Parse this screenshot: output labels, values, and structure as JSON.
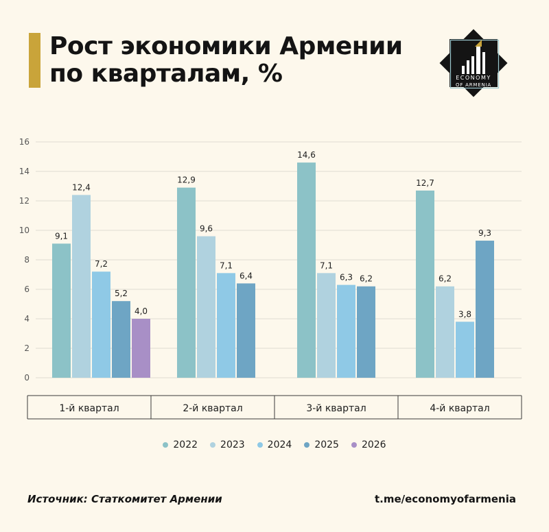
{
  "header": {
    "title_line1": "Рост экономики Армении",
    "title_line2": "по кварталам, %"
  },
  "logo": {
    "line1": "ECONOMY",
    "line2": "OF ARMENIA",
    "icon": "economy-of-armenia-logo"
  },
  "colors": {
    "accent": "#c9a43a",
    "logo_bg": "#141414",
    "series": [
      "#8cc2c7",
      "#b0d2df",
      "#8fc9e6",
      "#6ea5c4",
      "#a88fc6"
    ]
  },
  "chart_data": {
    "type": "bar",
    "categories": [
      "1-й квартал",
      "2-й квартал",
      "3-й квартал",
      "4-й квартал"
    ],
    "series": [
      {
        "name": "2022",
        "values": [
          9.1,
          12.9,
          14.6,
          12.7
        ],
        "labels": [
          "9,1",
          "12,9",
          "14,6",
          "12,7"
        ]
      },
      {
        "name": "2023",
        "values": [
          12.4,
          9.6,
          7.1,
          6.2
        ],
        "labels": [
          "12,4",
          "9,6",
          "7,1",
          "6,2"
        ]
      },
      {
        "name": "2024",
        "values": [
          7.2,
          7.1,
          6.3,
          3.8
        ],
        "labels": [
          "7,2",
          "7,1",
          "6,3",
          "3,8"
        ]
      },
      {
        "name": "2025",
        "values": [
          5.2,
          6.4,
          6.2,
          9.3
        ],
        "labels": [
          "5,2",
          "6,4",
          "6,2",
          "9,3"
        ]
      },
      {
        "name": "2026",
        "values": [
          4.0,
          null,
          null,
          null
        ],
        "labels": [
          "4,0",
          null,
          null,
          null
        ]
      }
    ],
    "ylim": [
      0,
      16
    ],
    "yticks": [
      "0",
      "2",
      "4",
      "6",
      "8",
      "10",
      "12",
      "14",
      "16"
    ],
    "grid": true,
    "legend_position": "bottom",
    "xlabel": "",
    "ylabel": ""
  },
  "footer": {
    "source": "Источник: Статкомитет Армении",
    "link": "t.me/economyofarmenia"
  }
}
